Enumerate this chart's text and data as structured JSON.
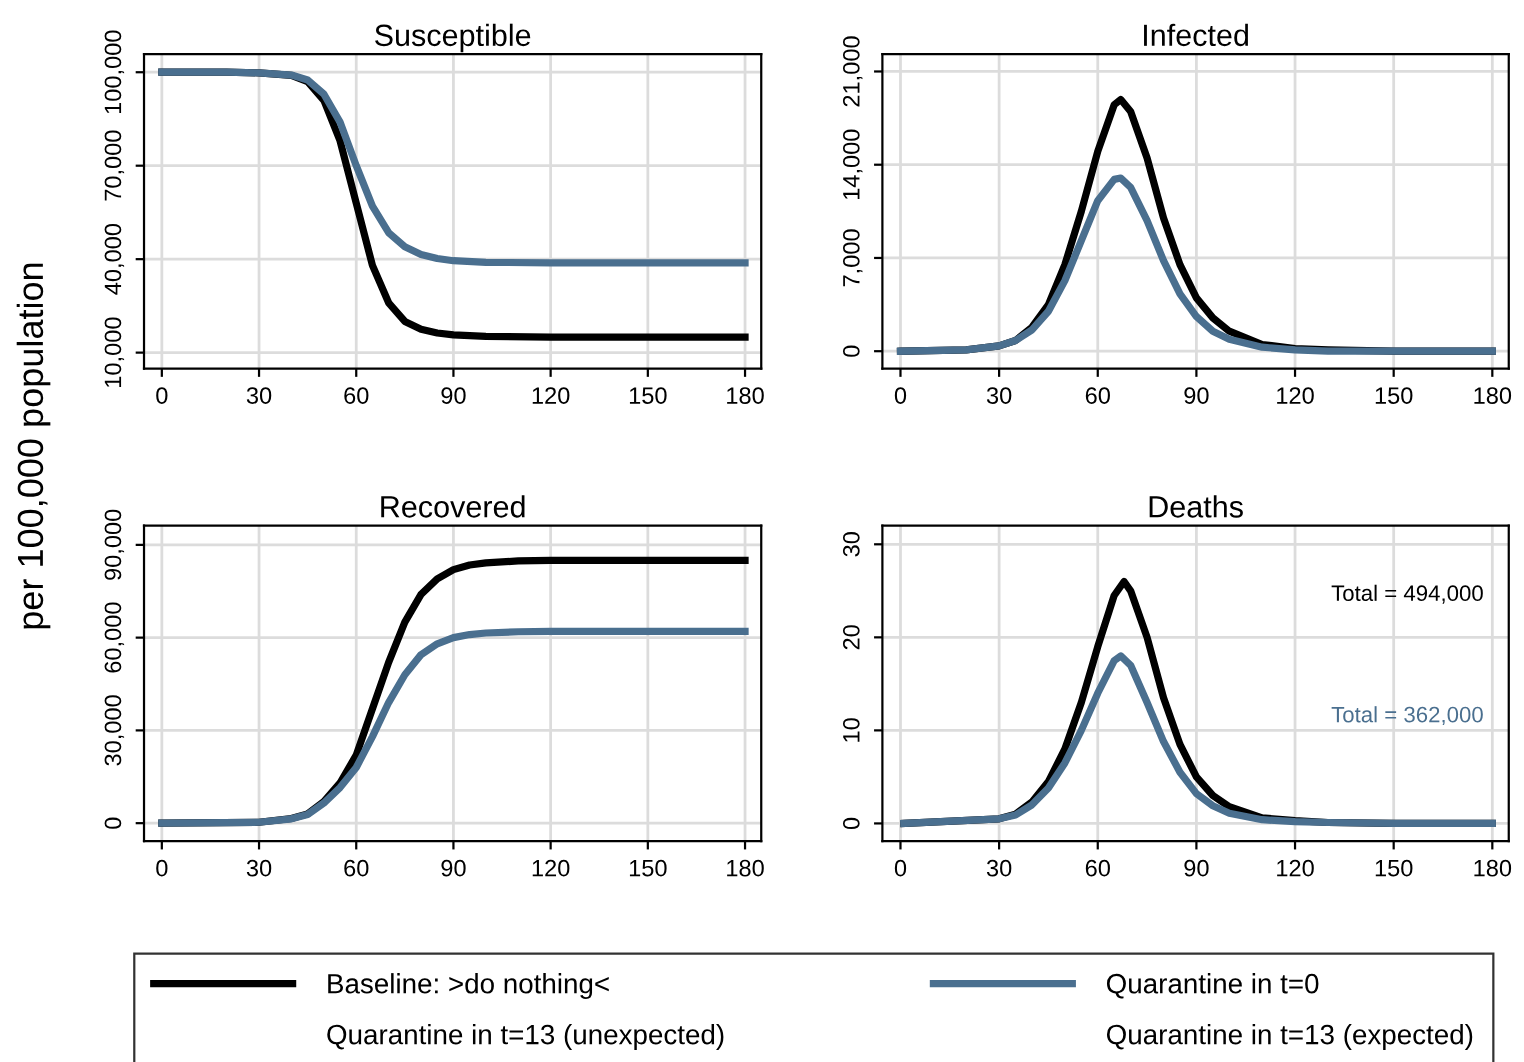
{
  "chart_data": [
    {
      "type": "line",
      "title": "Susceptible",
      "ylabel": "per 100,000 population",
      "legend": "bottom",
      "grid": true,
      "line_style": "solid",
      "marker": "none",
      "xlim": [
        -5.5,
        185
      ],
      "xticks": [
        0,
        30,
        60,
        90,
        120,
        150,
        180
      ],
      "ylim": [
        4900,
        105800
      ],
      "yticks": [
        {
          "value": 10000,
          "label": "10,000"
        },
        {
          "value": 40000,
          "label": "40,000"
        },
        {
          "value": 70000,
          "label": "70,000"
        },
        {
          "value": 100000,
          "label": "100,000"
        }
      ],
      "series": [
        {
          "name": "Baseline: >do nothing<",
          "color": "#000000",
          "x": [
            0,
            10,
            20,
            30,
            40,
            45,
            50,
            55,
            60,
            65,
            70,
            75,
            80,
            85,
            90,
            100,
            120,
            150,
            180
          ],
          "values": [
            100000,
            100000,
            100000,
            99800,
            99000,
            97000,
            91000,
            78000,
            58000,
            38000,
            26000,
            20000,
            17500,
            16300,
            15700,
            15200,
            15000,
            15000,
            15000
          ]
        },
        {
          "name": "Quarantine in t=0",
          "color": "#4a6f8f",
          "x": [
            0,
            10,
            20,
            30,
            40,
            45,
            50,
            55,
            60,
            65,
            70,
            75,
            80,
            85,
            90,
            100,
            120,
            150,
            180
          ],
          "values": [
            100000,
            100000,
            100000,
            99800,
            99100,
            97500,
            93000,
            84000,
            70000,
            57000,
            48500,
            44000,
            41500,
            40200,
            39500,
            39000,
            38800,
            38800,
            38800
          ]
        },
        {
          "name": "Quarantine in t=13 (unexpected)"
        },
        {
          "name": "Quarantine in t=13 (expected)"
        }
      ]
    },
    {
      "type": "line",
      "title": "Infected",
      "grid": true,
      "line_style": "solid",
      "marker": "none",
      "xlim": [
        -5.5,
        185
      ],
      "xticks": [
        0,
        30,
        60,
        90,
        120,
        150,
        180
      ],
      "ylim": [
        -1300,
        22300
      ],
      "yticks": [
        0,
        {
          "value": 7000,
          "label": "7,000"
        },
        {
          "value": 14000,
          "label": "14,000"
        },
        {
          "value": 21000,
          "label": "21,000"
        }
      ],
      "series": [
        {
          "color": "#000000",
          "x": [
            0,
            20,
            30,
            35,
            40,
            45,
            50,
            55,
            60,
            65,
            67,
            70,
            75,
            80,
            85,
            90,
            95,
            100,
            110,
            120,
            130,
            150,
            180
          ],
          "values": [
            0,
            100,
            400,
            800,
            1800,
            3500,
            6500,
            10500,
            15000,
            18500,
            18900,
            18000,
            14500,
            10000,
            6500,
            4000,
            2500,
            1500,
            500,
            200,
            100,
            0,
            0
          ]
        },
        {
          "color": "#4a6f8f",
          "x": [
            0,
            20,
            30,
            35,
            40,
            45,
            50,
            55,
            60,
            65,
            67,
            70,
            75,
            80,
            85,
            90,
            95,
            100,
            110,
            120,
            130,
            150,
            180
          ],
          "values": [
            0,
            100,
            400,
            800,
            1600,
            3000,
            5300,
            8300,
            11300,
            12900,
            13000,
            12300,
            9800,
            6800,
            4300,
            2600,
            1500,
            900,
            300,
            100,
            0,
            0,
            0
          ]
        }
      ]
    },
    {
      "type": "line",
      "title": "Recovered",
      "grid": true,
      "line_style": "solid",
      "marker": "none",
      "xlim": [
        -5.5,
        185
      ],
      "xticks": [
        0,
        30,
        60,
        90,
        120,
        150,
        180
      ],
      "ylim": [
        -5800,
        96200
      ],
      "yticks": [
        0,
        {
          "value": 30000,
          "label": "30,000"
        },
        {
          "value": 60000,
          "label": "60,000"
        },
        {
          "value": 90000,
          "label": "90,000"
        }
      ],
      "series": [
        {
          "color": "#000000",
          "x": [
            0,
            30,
            40,
            45,
            50,
            55,
            60,
            65,
            70,
            75,
            80,
            85,
            90,
            95,
            100,
            110,
            120,
            180
          ],
          "values": [
            0,
            300,
            1500,
            3000,
            7000,
            13000,
            22000,
            37000,
            52000,
            65000,
            74000,
            79000,
            82000,
            83500,
            84200,
            84800,
            85000,
            85000
          ]
        },
        {
          "color": "#4a6f8f",
          "x": [
            0,
            30,
            40,
            45,
            50,
            55,
            60,
            65,
            70,
            75,
            80,
            85,
            90,
            95,
            100,
            110,
            120,
            180
          ],
          "values": [
            0,
            300,
            1400,
            2800,
            6500,
            11500,
            18000,
            28000,
            39000,
            48000,
            54500,
            58000,
            60000,
            61000,
            61500,
            61900,
            62000,
            62000
          ]
        }
      ]
    },
    {
      "type": "line",
      "title": "Deaths",
      "grid": true,
      "line_style": "solid",
      "marker": "none",
      "xlim": [
        -5.5,
        185
      ],
      "xticks": [
        0,
        30,
        60,
        90,
        120,
        150,
        180
      ],
      "ylim": [
        -1.9,
        32
      ],
      "yticks": [
        0,
        10,
        20,
        30
      ],
      "annotations": [
        "Total = 494,000",
        "Total = 362,000"
      ],
      "series": [
        {
          "color": "#000000",
          "x": [
            1,
            30,
            35,
            40,
            45,
            50,
            55,
            60,
            65,
            68,
            70,
            75,
            80,
            85,
            90,
            95,
            100,
            110,
            120,
            130,
            150,
            180
          ],
          "values": [
            0,
            0.5,
            1,
            2.3,
            4.5,
            8,
            13,
            19,
            24.5,
            26,
            25,
            20,
            13.5,
            8.5,
            5,
            3,
            1.8,
            0.6,
            0.3,
            0.1,
            0,
            0
          ]
        },
        {
          "color": "#4a6f8f",
          "x": [
            1,
            30,
            35,
            40,
            45,
            50,
            55,
            60,
            65,
            67,
            70,
            75,
            80,
            85,
            90,
            95,
            100,
            110,
            120,
            130,
            150,
            180
          ],
          "values": [
            0,
            0.5,
            0.9,
            2,
            3.8,
            6.5,
            10,
            14,
            17.5,
            18,
            17,
            13,
            8.8,
            5.5,
            3.2,
            1.9,
            1.1,
            0.4,
            0.2,
            0.1,
            0,
            0
          ]
        }
      ]
    }
  ]
}
